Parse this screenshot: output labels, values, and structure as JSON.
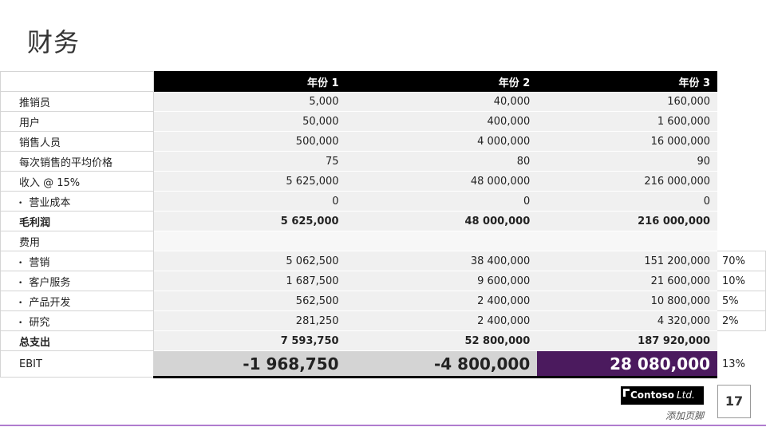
{
  "title": "财务",
  "columns": [
    "年份 1",
    "年份 2",
    "年份 3"
  ],
  "rows": [
    {
      "label": "推销员",
      "values": [
        "5,000",
        "40,000",
        "160,000"
      ],
      "pct": ""
    },
    {
      "label": "用户",
      "values": [
        "50,000",
        "400,000",
        "1 600,000"
      ],
      "pct": ""
    },
    {
      "label": "销售人员",
      "values": [
        "500,000",
        "4 000,000",
        "16 000,000"
      ],
      "pct": ""
    },
    {
      "label": "每次销售的平均价格",
      "values": [
        "75",
        "80",
        "90"
      ],
      "pct": ""
    },
    {
      "label": "收入 @ 15%",
      "values": [
        "5 625,000",
        "48 000,000",
        "216 000,000"
      ],
      "pct": ""
    },
    {
      "label": "营业成本",
      "values": [
        "0",
        "0",
        "0"
      ],
      "pct": ""
    },
    {
      "label": "毛利润",
      "values": [
        "5 625,000",
        "48 000,000",
        "216 000,000"
      ],
      "pct": ""
    },
    {
      "label": "费用",
      "values": [
        "",
        "",
        ""
      ],
      "pct": ""
    },
    {
      "label": "营销",
      "values": [
        "5 062,500",
        "38 400,000",
        "151 200,000"
      ],
      "pct": "70%"
    },
    {
      "label": "客户服务",
      "values": [
        "1 687,500",
        "9 600,000",
        "21 600,000"
      ],
      "pct": "10%"
    },
    {
      "label": "产品开发",
      "values": [
        "562,500",
        "2 400,000",
        "10 800,000"
      ],
      "pct": "5%"
    },
    {
      "label": "研究",
      "values": [
        "281,250",
        "2 400,000",
        "4 320,000"
      ],
      "pct": "2%"
    },
    {
      "label": "总支出",
      "values": [
        "7 593,750",
        "52 800,000",
        "187 920,000"
      ],
      "pct": ""
    },
    {
      "label": "EBIT",
      "values": [
        "-1 968,750",
        "-4 800,000",
        "28 080,000"
      ],
      "pct": "13%"
    }
  ],
  "footer": {
    "logo_name": "Contoso",
    "logo_suffix": "Ltd.",
    "footer_text": "添加页脚",
    "page_number": "17"
  },
  "colors": {
    "header_bg": "#000000",
    "highlight": "#4b1a5e",
    "accent_line": "#b07ccf"
  }
}
